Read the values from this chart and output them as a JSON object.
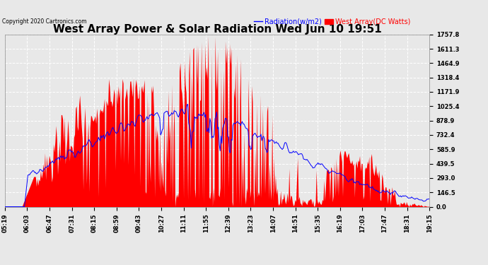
{
  "title": "West Array Power & Solar Radiation Wed Jun 10 19:51",
  "copyright": "Copyright 2020 Cartronics.com",
  "legend_radiation": "Radiation(w/m2)",
  "legend_west": "West Array(DC Watts)",
  "radiation_color": "blue",
  "west_color": "red",
  "background_color": "#e8e8e8",
  "plot_bg_color": "#e8e8e8",
  "ymin": 0.0,
  "ymax": 1757.8,
  "yticks": [
    0.0,
    146.5,
    293.0,
    439.5,
    585.9,
    732.4,
    878.9,
    1025.4,
    1171.9,
    1318.4,
    1464.9,
    1611.3,
    1757.8
  ],
  "grid_color": "#bbbbbb",
  "title_fontsize": 11,
  "tick_fontsize": 6,
  "n_points": 500,
  "x_labels": [
    "05:19",
    "06:03",
    "06:47",
    "07:31",
    "08:15",
    "08:59",
    "09:43",
    "10:27",
    "11:11",
    "11:55",
    "12:39",
    "13:23",
    "14:07",
    "14:51",
    "15:35",
    "16:19",
    "17:03",
    "17:47",
    "18:31",
    "19:15"
  ]
}
